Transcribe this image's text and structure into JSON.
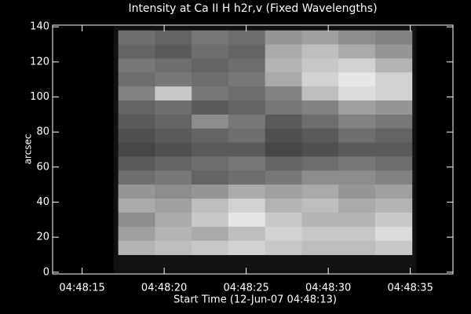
{
  "chart_data": {
    "type": "heatmap",
    "title": "Intensity at Ca II H h2r,v (Fixed Wavelengths)",
    "x_label": "Start Time (12-Jun-07 04:48:13)",
    "y_label": "arcsec",
    "xlim": [
      13.2,
      37.6
    ],
    "xticks": [
      {
        "value": 15,
        "label": "04:48:15"
      },
      {
        "value": 20,
        "label": "04:48:20"
      },
      {
        "value": 25,
        "label": "04:48:25"
      },
      {
        "value": 30,
        "label": "04:48:30"
      },
      {
        "value": 35,
        "label": "04:48:35"
      }
    ],
    "ylim": [
      -1,
      141
    ],
    "yticks": [
      0,
      20,
      40,
      60,
      80,
      100,
      120,
      140
    ],
    "image_x": [
      17.2,
      35.1
    ],
    "image_y": [
      10,
      138
    ],
    "z": [
      [
        110,
        100,
        120,
        110,
        150,
        160,
        140,
        130
      ],
      [
        100,
        90,
        110,
        100,
        170,
        190,
        170,
        150
      ],
      [
        120,
        110,
        100,
        110,
        180,
        200,
        210,
        180
      ],
      [
        110,
        120,
        110,
        120,
        170,
        210,
        230,
        210
      ],
      [
        130,
        200,
        120,
        110,
        130,
        190,
        220,
        210
      ],
      [
        100,
        110,
        90,
        100,
        120,
        130,
        160,
        150
      ],
      [
        90,
        100,
        140,
        120,
        90,
        110,
        130,
        120
      ],
      [
        80,
        90,
        100,
        110,
        80,
        90,
        110,
        100
      ],
      [
        70,
        80,
        90,
        90,
        70,
        80,
        90,
        90
      ],
      [
        90,
        100,
        110,
        120,
        100,
        110,
        120,
        110
      ],
      [
        110,
        120,
        100,
        110,
        120,
        140,
        140,
        130
      ],
      [
        150,
        140,
        150,
        170,
        160,
        170,
        150,
        160
      ],
      [
        170,
        160,
        190,
        210,
        180,
        190,
        170,
        180
      ],
      [
        140,
        170,
        200,
        230,
        200,
        180,
        180,
        200
      ],
      [
        160,
        180,
        170,
        190,
        210,
        200,
        200,
        220
      ],
      [
        180,
        190,
        200,
        210,
        200,
        190,
        190,
        200
      ]
    ]
  }
}
